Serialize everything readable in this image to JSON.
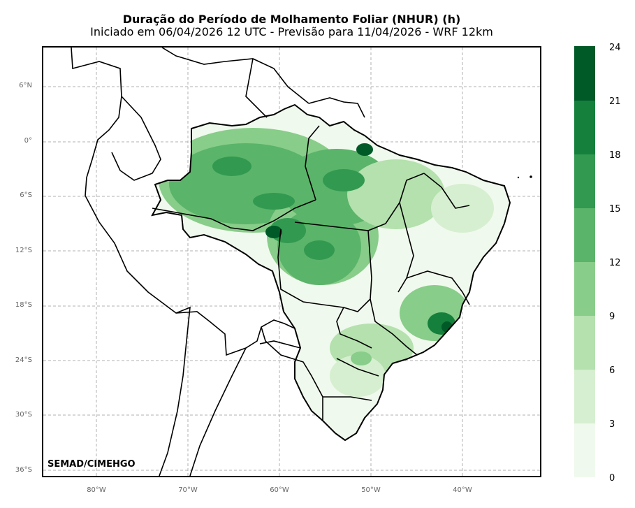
{
  "title": {
    "main": "Duração do Período de Molhamento Foliar (NHUR) (h)",
    "sub": "Iniciado em 06/04/2026 12 UTC - Previsão para 11/04/2026 - WRF 12km"
  },
  "credit": "SEMAD/CIMEHGO",
  "lat_labels": [
    "6°N",
    "0°",
    "6°S",
    "12°S",
    "18°S",
    "24°S",
    "30°S",
    "36°S"
  ],
  "lon_labels": [
    "80°W",
    "70°W",
    "60°W",
    "50°W",
    "40°W"
  ],
  "colorbar": {
    "ticks": [
      "0",
      "3",
      "6",
      "9",
      "12",
      "15",
      "18",
      "21",
      "24"
    ],
    "colors": [
      "#f0f9ed",
      "#d6efd0",
      "#b4e1ad",
      "#88cd89",
      "#5ab469",
      "#329950",
      "#14803c",
      "#005a28"
    ]
  },
  "map": {
    "border_color": "#000000",
    "grid": "dashed"
  }
}
